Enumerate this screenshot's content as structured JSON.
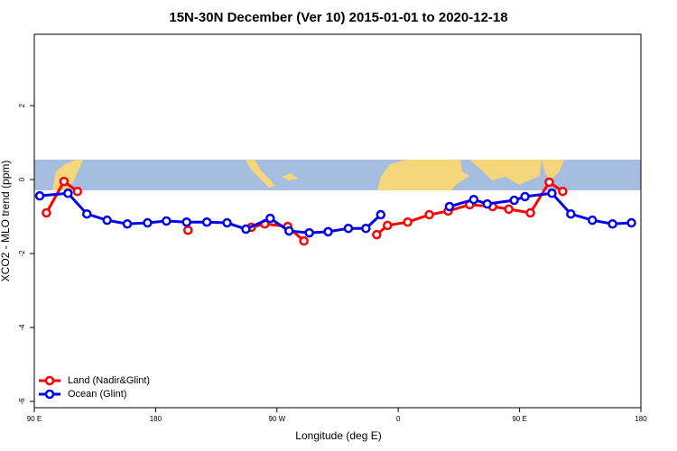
{
  "chart_data": {
    "type": "line",
    "title": "15N-30N December (Ver 10)   2015-01-01 to 2020-12-18",
    "xlabel": "Longitude (deg E)",
    "ylabel": "XCO2 - MLO trend (ppm)",
    "xlim": [
      90,
      540
    ],
    "ylim": [
      -6.17,
      3.93
    ],
    "xticks": [
      {
        "value": 90,
        "label": "90 E"
      },
      180,
      {
        "value": 270,
        "label": "90 W"
      },
      {
        "value": 360,
        "label": "0"
      },
      {
        "value": 450,
        "label": "90 E"
      },
      {
        "value": 540,
        "label": "180"
      }
    ],
    "yticks": [
      -6,
      -4,
      -2,
      0,
      2
    ],
    "legend": "bottom-left",
    "series": [
      {
        "name": "Land (Nadir&Glint)",
        "color": "#ff0000",
        "x": [
          99,
          112,
          122,
          163,
          204,
          230,
          251,
          261,
          278,
          290,
          317,
          344,
          352,
          367,
          383,
          397,
          413,
          430,
          442,
          458,
          472,
          482
        ],
        "values": [
          -0.9,
          -0.05,
          -0.32,
          null,
          -1.37,
          null,
          -1.29,
          -1.2,
          -1.27,
          -1.66,
          null,
          -1.49,
          -1.24,
          -1.15,
          -0.95,
          -0.85,
          -0.68,
          -0.73,
          -0.8,
          -0.9,
          -0.07,
          -0.32
        ]
      },
      {
        "name": "Ocean (Glint)",
        "color": "#0000ee",
        "x": [
          94,
          115,
          129,
          144,
          159,
          174,
          188,
          203,
          218,
          233,
          247,
          265,
          279,
          294,
          308,
          323,
          336,
          347,
          372,
          398,
          416,
          426,
          446,
          454,
          474,
          488,
          504,
          519,
          533
        ],
        "values": [
          -0.44,
          -0.37,
          -0.93,
          -1.1,
          -1.2,
          -1.17,
          -1.12,
          -1.15,
          -1.15,
          -1.17,
          -1.34,
          -1.05,
          -1.39,
          -1.44,
          -1.41,
          -1.32,
          -1.32,
          -0.95,
          null,
          -0.73,
          -0.54,
          -0.66,
          -0.56,
          -0.46,
          -0.37,
          -0.93,
          -1.1,
          -1.2,
          -1.17
        ]
      }
    ]
  }
}
